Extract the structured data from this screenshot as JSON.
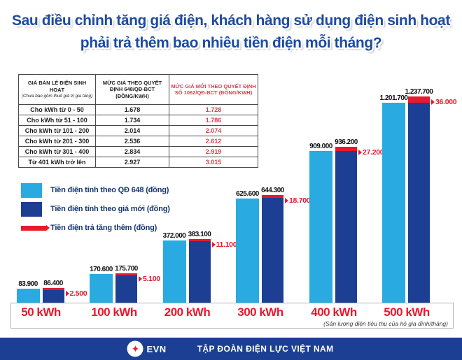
{
  "title": {
    "line1": "Sau điều chỉnh tăng giá điện, khách hàng sử dụng điện sinh hoạt",
    "line2": "phải trả thêm bao nhiêu tiền điện mỗi tháng?"
  },
  "table": {
    "headers": [
      {
        "title": "GIÁ BÁN LẺ ĐIỆN SINH HOẠT",
        "note": "(Chưa bao gồm thuế giá trị gia tăng)"
      },
      {
        "title": "MỨC GIÁ THEO QUYẾT ĐỊNH 648/QĐ-BCT (ĐỒNG/KWH)",
        "note": ""
      },
      {
        "title": "MỨC GIÁ MỚI THEO QUYẾT ĐỊNH SỐ 1062/QĐ-BCT (ĐỒNG/KWH)",
        "note": ""
      }
    ],
    "rows": [
      [
        "Cho kWh từ 0 - 50",
        "1.678",
        "1.728"
      ],
      [
        "Cho kWh từ 51 - 100",
        "1.734",
        "1.786"
      ],
      [
        "Cho kWh từ 101 - 200",
        "2.014",
        "2.074"
      ],
      [
        "Cho kWh từ 201 - 300",
        "2.536",
        "2.612"
      ],
      [
        "Cho kWh từ 301 - 400",
        "2.834",
        "2.919"
      ],
      [
        "Từ 401 kWh trở lên",
        "2.927",
        "3.015"
      ]
    ]
  },
  "legend": [
    {
      "label": "Tiền điện tính theo QĐ 648 (đồng)",
      "swatch": "light-blue"
    },
    {
      "label": "Tiền điện tính theo giá mới (đồng)",
      "swatch": "dark-blue"
    },
    {
      "label": "Tiền điện trả tăng thêm (đồng)",
      "swatch": "red-arrow"
    }
  ],
  "chart_data": {
    "type": "bar",
    "categories": [
      "50 kWh",
      "100 kWh",
      "200 kWh",
      "300 kWh",
      "400 kWh",
      "500 kWh"
    ],
    "series": [
      {
        "name": "Tiền điện tính theo QĐ 648 (đồng)",
        "values": [
          83900,
          170600,
          372000,
          625600,
          909000,
          1201700
        ],
        "labels": [
          "83.900",
          "170.600",
          "372.000",
          "625.600",
          "909.000",
          "1.201.700"
        ]
      },
      {
        "name": "Tiền điện tính theo giá mới (đồng)",
        "values": [
          86400,
          175700,
          383100,
          644300,
          936200,
          1237700
        ],
        "labels": [
          "86.400",
          "175.700",
          "383.100",
          "644.300",
          "936.200",
          "1.237.700"
        ]
      },
      {
        "name": "Tiền điện trả tăng thêm (đồng)",
        "values": [
          2500,
          5100,
          11100,
          18700,
          27200,
          36000
        ],
        "labels": [
          "2.500",
          "5.100",
          "11.100",
          "18.700",
          "27.200",
          "36.000"
        ]
      }
    ],
    "ylim": [
      0,
      1300000
    ],
    "grid": false,
    "legend_position": "left-middle",
    "note": "(Sản lượng điện tiêu thụ của hộ gia đình/tháng)",
    "colors": {
      "old": "#29abe2",
      "new": "#1c3f94",
      "increase": "#e8192c"
    }
  },
  "footer": {
    "logo_icon": "evn-star-icon",
    "logo_text": "EVN",
    "org": "TẬP ĐOÀN ĐIỆN LỰC VIỆT NAM"
  }
}
